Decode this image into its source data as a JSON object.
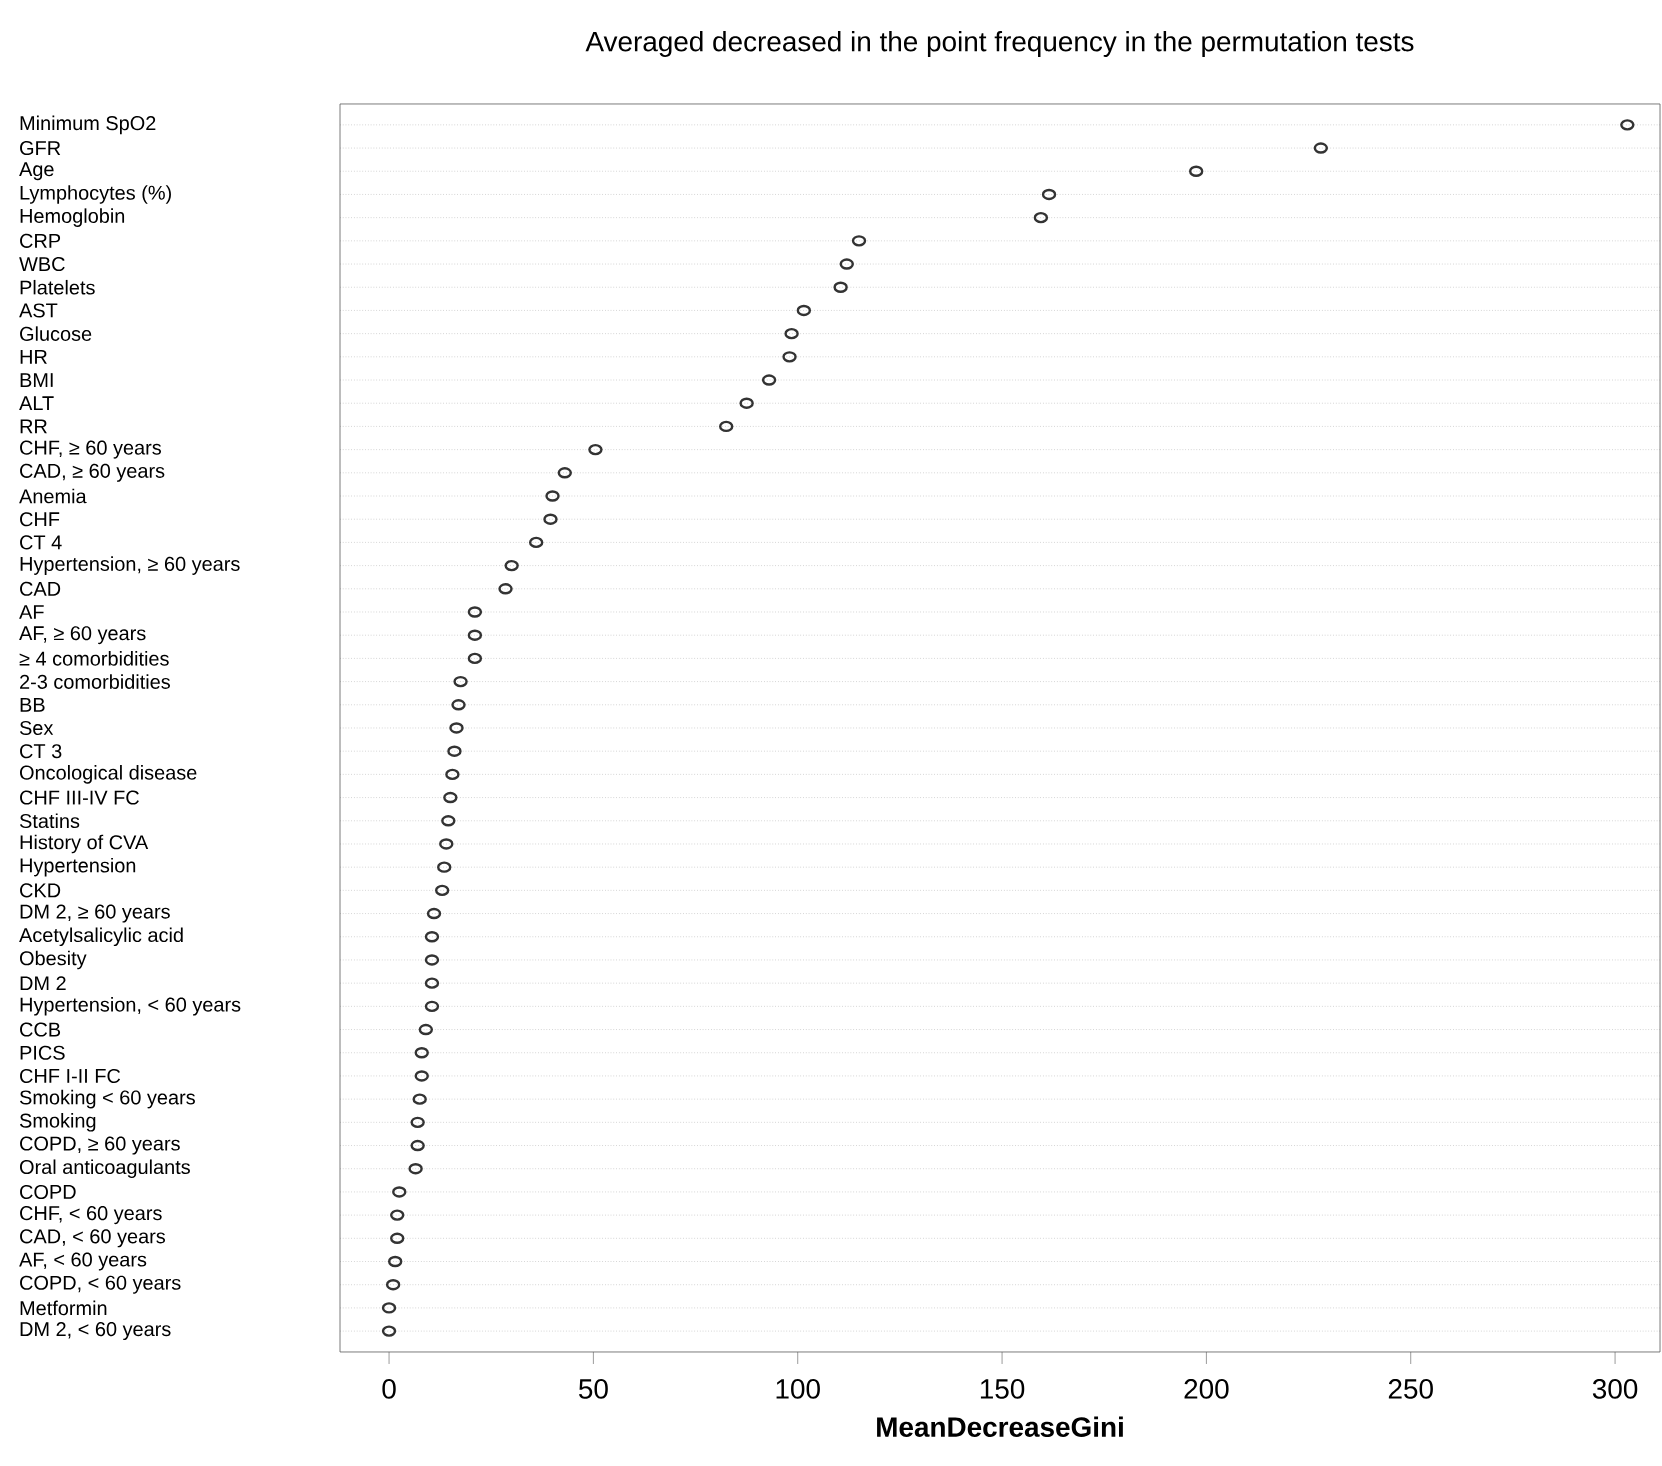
{
  "chart_data": {
    "type": "scatter",
    "orientation": "horizontal",
    "title": "Averaged decreased in the point frequency in the permutation tests",
    "xlabel": "MeanDecreaseGini",
    "categories": [
      "Minimum SpO2",
      "GFR",
      "Age",
      "Lymphocytes (%)",
      "Hemoglobin",
      "CRP",
      "WBC",
      "Platelets",
      "AST",
      "Glucose",
      "HR",
      "BMI",
      "ALT",
      "RR",
      "CHF, ≥ 60 years",
      "CAD, ≥ 60 years",
      "Anemia",
      "CHF",
      "CT 4",
      "Hypertension, ≥ 60 years",
      "CAD",
      "AF",
      "AF, ≥ 60 years",
      "≥ 4 comorbidities",
      "2-3 comorbidities",
      "BB",
      "Sex",
      "CT 3",
      "Oncological disease",
      "CHF III-IV FC",
      "Statins",
      "History of CVA",
      "Hypertension",
      "CKD",
      "DM 2, ≥ 60 years",
      "Acetylsalicylic acid",
      "Obesity",
      "DM 2",
      "Hypertension, < 60 years",
      "CCB",
      "PICS",
      "CHF I-II FC",
      "Smoking < 60 years",
      "Smoking",
      "COPD, ≥ 60 years",
      "Oral anticoagulants",
      "COPD",
      "CHF, < 60 years",
      "CAD, < 60 years",
      "AF, < 60 years",
      "COPD, < 60 years",
      "Metformin",
      "DM 2, < 60 years"
    ],
    "values": [
      303,
      228,
      197.5,
      161.5,
      159.5,
      115,
      112,
      110.5,
      101.5,
      98.5,
      98,
      93,
      87.5,
      82.5,
      50.5,
      43,
      40,
      39.5,
      36,
      30,
      28.5,
      21,
      21,
      21,
      17.5,
      17,
      16.5,
      16,
      15.5,
      15,
      14.5,
      14,
      13.5,
      13,
      11,
      10.5,
      10.5,
      10.5,
      10.5,
      9,
      8,
      8,
      7.5,
      7,
      7,
      6.5,
      2.5,
      2,
      2,
      1.5,
      1,
      0,
      0
    ],
    "color": "#333333",
    "marker": "circle",
    "grid": "y",
    "xlim": [
      -12,
      311
    ],
    "xticks": [
      0,
      50,
      100,
      150,
      200,
      250,
      300
    ]
  }
}
